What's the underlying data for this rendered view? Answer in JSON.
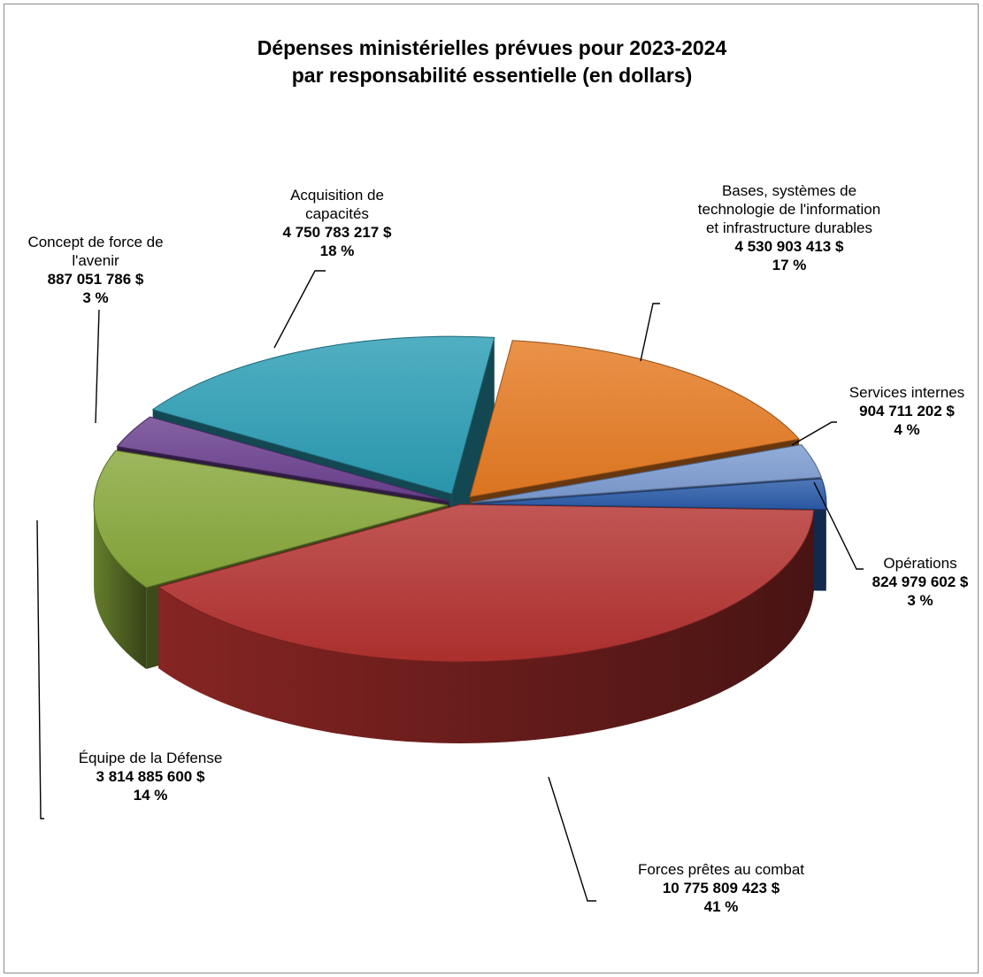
{
  "chart_data": {
    "type": "pie",
    "title_line1": "Dépenses ministérielles prévues pour 2023-2024",
    "title_line2": "par responsabilité essentielle (en dollars)",
    "slices": [
      {
        "label_lines": [
          "Forces prêtes au combat"
        ],
        "amount": "10 775 809 423 $",
        "value": 10775809423,
        "percent": "41 %",
        "color": "#b3312f"
      },
      {
        "label_lines": [
          "Équipe de la Défense"
        ],
        "amount": "3 814 885 600 $",
        "value": 3814885600,
        "percent": "14 %",
        "color": "#87a73a"
      },
      {
        "label_lines": [
          "Concept de force de",
          "l'avenir"
        ],
        "amount": "887 051 786 $",
        "value": 887051786,
        "percent": "3 %",
        "color": "#6a3f8f"
      },
      {
        "label_lines": [
          "Acquisition de",
          "capacités"
        ],
        "amount": "4 750 783 217 $",
        "value": 4750783217,
        "percent": "18 %",
        "color": "#2b9db4"
      },
      {
        "label_lines": [
          "Bases, systèmes de",
          "technologie de l'information",
          "et infrastructure durables"
        ],
        "amount": "4 530 903 413 $",
        "value": 4530903413,
        "percent": "17 %",
        "color": "#e57a22"
      },
      {
        "label_lines": [
          "Services internes"
        ],
        "amount": "904 711 202 $",
        "value": 904711202,
        "percent": "4 %",
        "color": "#7b9bd0"
      },
      {
        "label_lines": [
          "Opérations"
        ],
        "amount": "824 979 602 $",
        "value": 824979602,
        "percent": "3 %",
        "color": "#2a5aa8"
      }
    ]
  }
}
